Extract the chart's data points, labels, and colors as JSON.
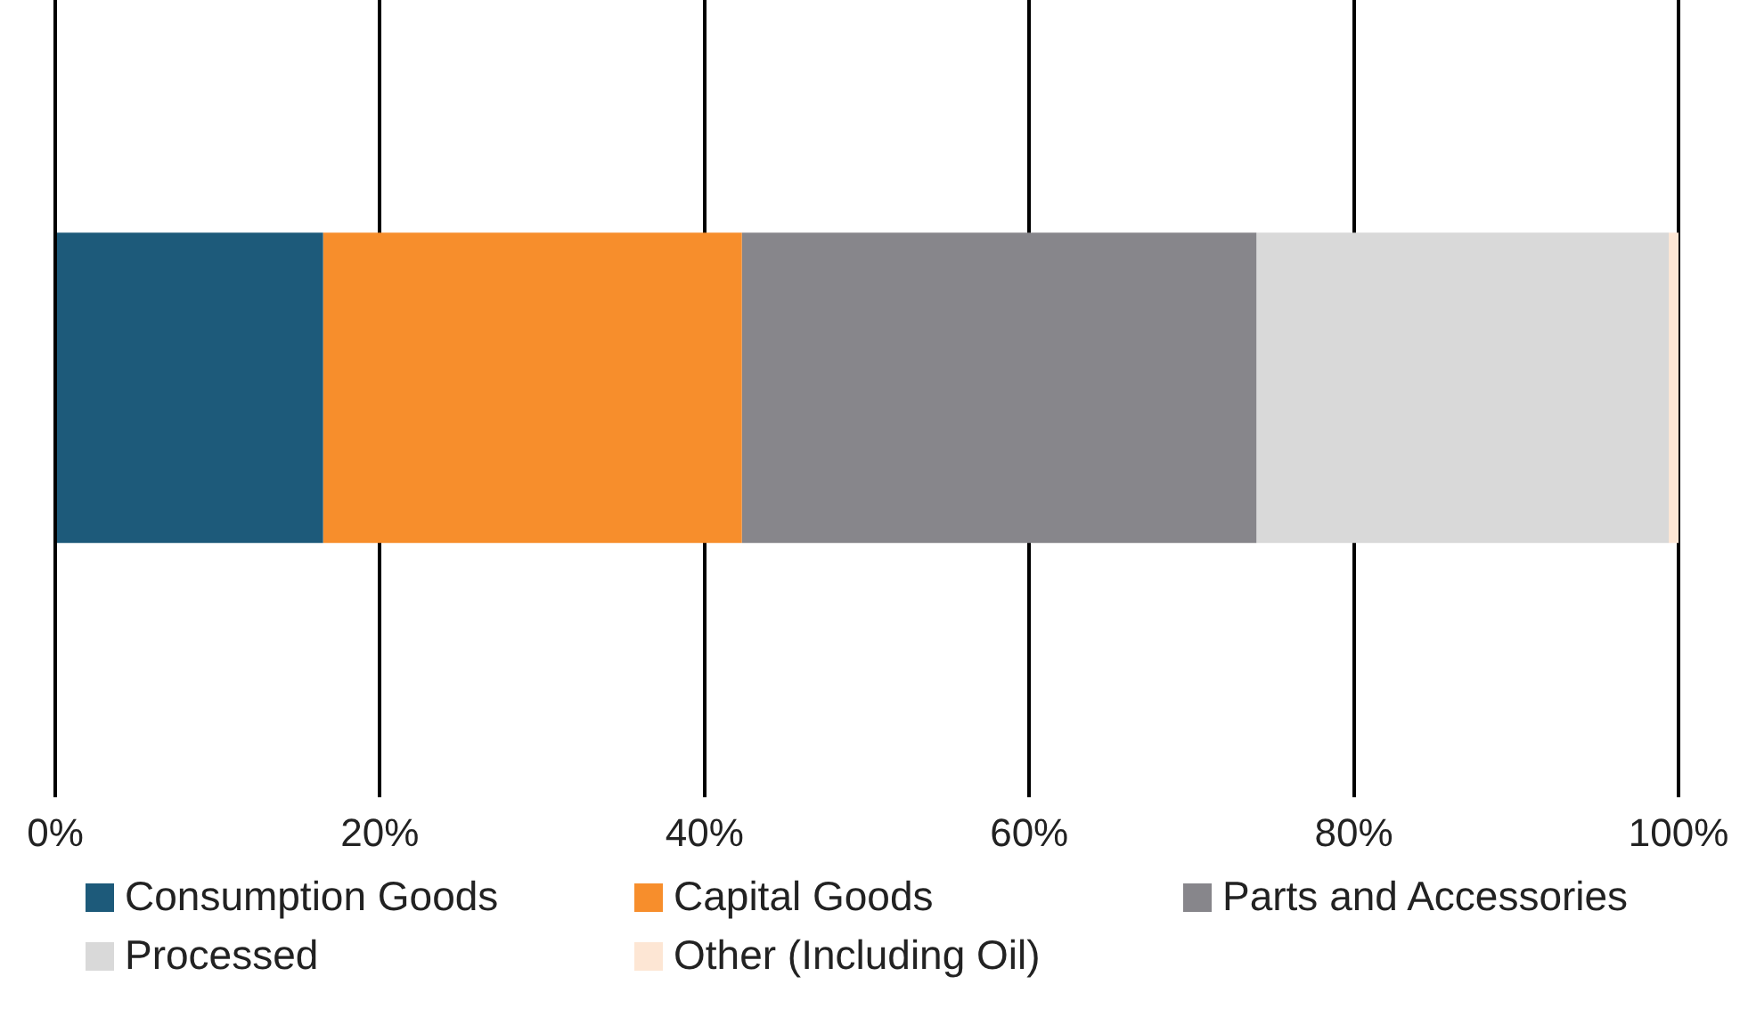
{
  "chart_data": {
    "type": "bar",
    "orientation": "horizontal",
    "stacked": true,
    "categories": [
      null
    ],
    "series": [
      {
        "name": "Consumption Goods",
        "color": "#1d5a7a",
        "values": [
          16.5
        ]
      },
      {
        "name": "Capital Goods",
        "color": "#f78e2c",
        "values": [
          25.8
        ]
      },
      {
        "name": "Parts and Accessories",
        "color": "#87868b",
        "values": [
          31.7
        ]
      },
      {
        "name": "Processed",
        "color": "#d9d9d9",
        "values": [
          25.4
        ]
      },
      {
        "name": "Other (Including Oil)",
        "color": "#fde6d4",
        "values": [
          0.6
        ]
      }
    ],
    "xlim": [
      0,
      100
    ],
    "xticks": [
      {
        "value": 0,
        "label": "0%"
      },
      {
        "value": 20,
        "label": "20%"
      },
      {
        "value": 40,
        "label": "40%"
      },
      {
        "value": 60,
        "label": "60%"
      },
      {
        "value": 80,
        "label": "80%"
      },
      {
        "value": 100,
        "label": "100%"
      }
    ],
    "grid": "x",
    "legend": "bottom"
  }
}
